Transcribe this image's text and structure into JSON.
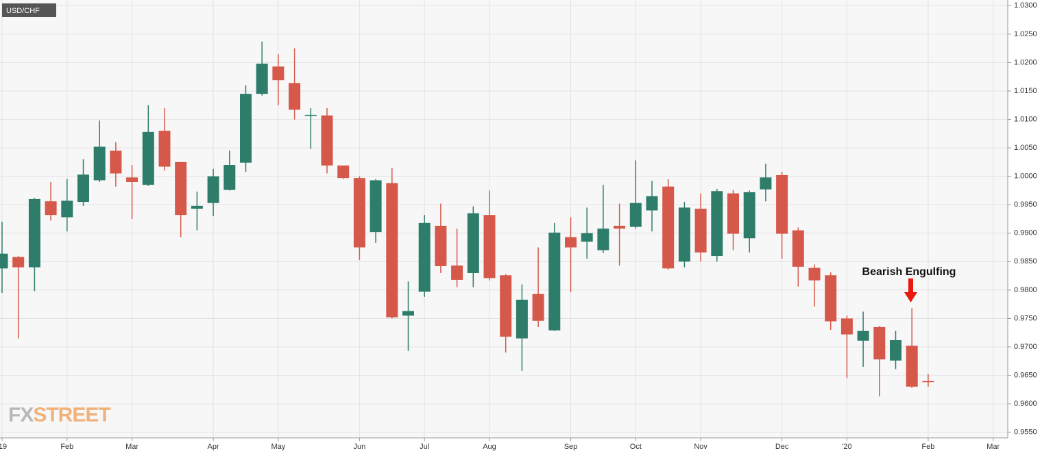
{
  "chart_data": {
    "type": "candlestick",
    "title": "USD/CHF",
    "watermark": {
      "prefix": "FX",
      "suffix": "STREET"
    },
    "annotation": "Bearish Engulfing",
    "up_color": "#2e7d6b",
    "down_color": "#d5584a",
    "grid": true,
    "ylim": [
      0.954,
      1.031
    ],
    "yticks": [
      {
        "value": 0.955,
        "label": "0.9550"
      },
      {
        "value": 0.96,
        "label": "0.9600"
      },
      {
        "value": 0.965,
        "label": "0.9650"
      },
      {
        "value": 0.97,
        "label": "0.9700"
      },
      {
        "value": 0.975,
        "label": "0.9750"
      },
      {
        "value": 0.98,
        "label": "0.9800"
      },
      {
        "value": 0.985,
        "label": "0.9850"
      },
      {
        "value": 0.99,
        "label": "0.9900"
      },
      {
        "value": 0.995,
        "label": "0.9950"
      },
      {
        "value": 1.0,
        "label": "1.0000"
      },
      {
        "value": 1.005,
        "label": "1.0050"
      },
      {
        "value": 1.01,
        "label": "1.0100"
      },
      {
        "value": 1.015,
        "label": "1.0150"
      },
      {
        "value": 1.02,
        "label": "1.0200"
      },
      {
        "value": 1.025,
        "label": "1.0250"
      },
      {
        "value": 1.03,
        "label": "1.0300"
      }
    ],
    "categories": [
      "'19",
      null,
      null,
      null,
      "Feb",
      null,
      null,
      null,
      "Mar",
      null,
      null,
      null,
      null,
      "Apr",
      null,
      null,
      null,
      "May",
      null,
      null,
      null,
      null,
      "Jun",
      null,
      null,
      null,
      "Jul",
      null,
      null,
      null,
      "Aug",
      null,
      null,
      null,
      null,
      "Sep",
      null,
      null,
      null,
      "Oct",
      null,
      null,
      null,
      "Nov",
      null,
      null,
      null,
      null,
      "Dec",
      null,
      null,
      null,
      "'20",
      null,
      null,
      null,
      null,
      "Feb",
      null,
      null,
      null,
      "Mar"
    ],
    "open": [
      0.9838,
      0.9858,
      0.984,
      0.9956,
      0.9928,
      0.9955,
      0.9993,
      1.0045,
      0.9998,
      0.9985,
      1.008,
      1.0025,
      0.9943,
      0.9953,
      0.9976,
      1.0024,
      1.0145,
      1.0193,
      1.0164,
      1.0107,
      1.0107,
      1.0019,
      0.9997,
      0.9902,
      0.9988,
      0.9755,
      0.9797,
      0.9913,
      0.9843,
      0.983,
      0.9932,
      0.9826,
      0.9715,
      0.9793,
      0.9729,
      0.9893,
      0.9885,
      0.987,
      0.9913,
      0.9911,
      0.994,
      0.9982,
      0.985,
      0.9943,
      0.986,
      0.997,
      0.9891,
      0.9977,
      1.0002,
      0.9905,
      0.9839,
      0.9826,
      0.975,
      0.9711,
      0.9735,
      0.9676,
      0.9702,
      0.964,
      null,
      null,
      null,
      null
    ],
    "high": [
      0.992,
      0.986,
      0.9962,
      0.999,
      0.9995,
      1.003,
      1.0098,
      1.006,
      1.002,
      1.0125,
      1.012,
      1.0025,
      0.9973,
      1.0013,
      1.0045,
      1.016,
      1.0237,
      1.0215,
      1.0225,
      1.012,
      1.012,
      1.0019,
      1.0,
      0.9995,
      1.0015,
      0.9815,
      0.9932,
      0.9952,
      0.9908,
      0.9947,
      0.9975,
      0.9828,
      0.981,
      0.9875,
      0.9918,
      0.9928,
      0.9945,
      0.9985,
      0.9952,
      1.0028,
      0.9992,
      0.9995,
      0.9955,
      0.997,
      0.9978,
      0.9976,
      0.9975,
      1.0022,
      1.0008,
      0.991,
      0.9845,
      0.9831,
      0.9755,
      0.9762,
      0.9737,
      0.9728,
      0.9768,
      0.9652,
      null,
      null,
      null,
      null
    ],
    "low": [
      0.9795,
      0.9715,
      0.9798,
      0.9922,
      0.9903,
      0.9948,
      0.999,
      0.9982,
      0.9925,
      0.9983,
      1.001,
      0.9893,
      0.9905,
      0.993,
      0.9975,
      1.0008,
      1.0142,
      1.0125,
      1.01,
      1.0048,
      1.0005,
      0.9995,
      0.9853,
      0.9883,
      0.975,
      0.9693,
      0.9788,
      0.983,
      0.9805,
      0.9805,
      0.9817,
      0.969,
      0.9658,
      0.9735,
      0.9728,
      0.9796,
      0.9855,
      0.9865,
      0.9843,
      0.9908,
      0.9903,
      0.9836,
      0.984,
      0.985,
      0.985,
      0.987,
      0.9866,
      0.9956,
      0.9855,
      0.9806,
      0.9771,
      0.973,
      0.9645,
      0.9665,
      0.9613,
      0.9661,
      0.9628,
      0.963,
      null,
      null,
      null,
      null
    ],
    "close": [
      0.9864,
      0.984,
      0.996,
      0.9932,
      0.9957,
      1.0003,
      1.0052,
      1.0005,
      0.999,
      1.0078,
      1.0017,
      0.9932,
      0.9948,
      1.0,
      1.002,
      1.0145,
      1.0198,
      1.0169,
      1.0117,
      1.0108,
      1.0019,
      0.9997,
      0.9875,
      0.9993,
      0.9752,
      0.9763,
      0.9918,
      0.9842,
      0.9818,
      0.9935,
      0.9821,
      0.9718,
      0.9783,
      0.9746,
      0.9901,
      0.9875,
      0.99,
      0.9908,
      0.9908,
      0.9953,
      0.9965,
      0.9838,
      0.9945,
      0.9866,
      0.9974,
      0.9899,
      0.9972,
      0.9998,
      0.9899,
      0.9841,
      0.9817,
      0.9745,
      0.9722,
      0.9728,
      0.9678,
      0.9712,
      0.963,
      0.9639,
      null,
      null,
      null,
      null
    ]
  }
}
